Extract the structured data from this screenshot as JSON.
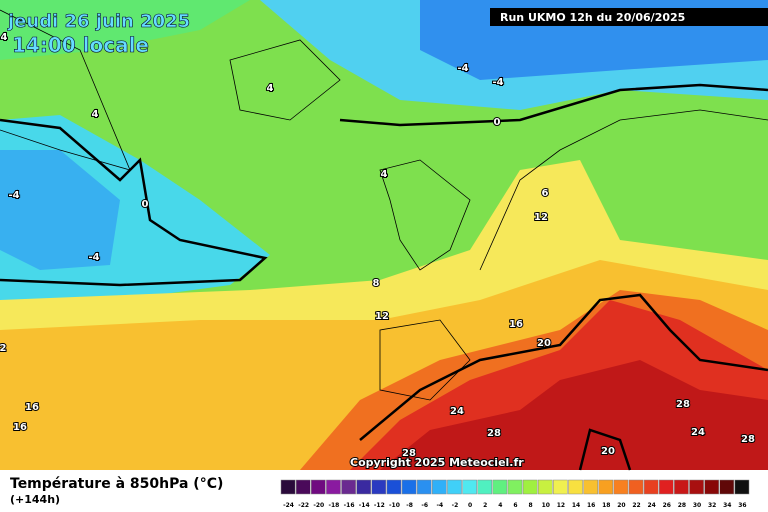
{
  "header": {
    "date": "jeudi 26 juin 2025",
    "time": "14:00 locale",
    "run": "Run UKMO 12h du 20/06/2025"
  },
  "map": {
    "contour_labels": [
      "4",
      "4",
      "-4",
      "-4",
      "4",
      "0",
      "4",
      "-4",
      "0",
      "-4",
      "6",
      "12",
      "8",
      "12",
      "16",
      "20",
      "2",
      "16",
      "16",
      "24",
      "28",
      "28",
      "24",
      "28",
      "28",
      "20"
    ],
    "copyright": "Copyright 2025 Meteociel.fr"
  },
  "footer": {
    "title": "Température à 850hPa (°C)",
    "lead": "(+144h)"
  },
  "legend": {
    "ticks": [
      -24,
      -22,
      -20,
      -18,
      -16,
      -14,
      -12,
      -10,
      -8,
      -6,
      -4,
      -2,
      0,
      2,
      4,
      6,
      8,
      10,
      12,
      14,
      16,
      18,
      20,
      22,
      24,
      26,
      28,
      30,
      32,
      34,
      36
    ],
    "colors": [
      "#2a0a3a",
      "#4a0a5a",
      "#700a80",
      "#8a1aa0",
      "#6a2a90",
      "#3a2aa0",
      "#2a3ac0",
      "#1a50d8",
      "#1a70e8",
      "#2a90f0",
      "#30b0f8",
      "#40d0f8",
      "#50e8f0",
      "#50f0c0",
      "#60f080",
      "#80f060",
      "#a0f040",
      "#c8f040",
      "#f0f050",
      "#f8e040",
      "#f8c030",
      "#f8a020",
      "#f88020",
      "#f06020",
      "#e84020",
      "#e02020",
      "#c81818",
      "#a81010",
      "#880808",
      "#600808",
      "#101010"
    ]
  }
}
